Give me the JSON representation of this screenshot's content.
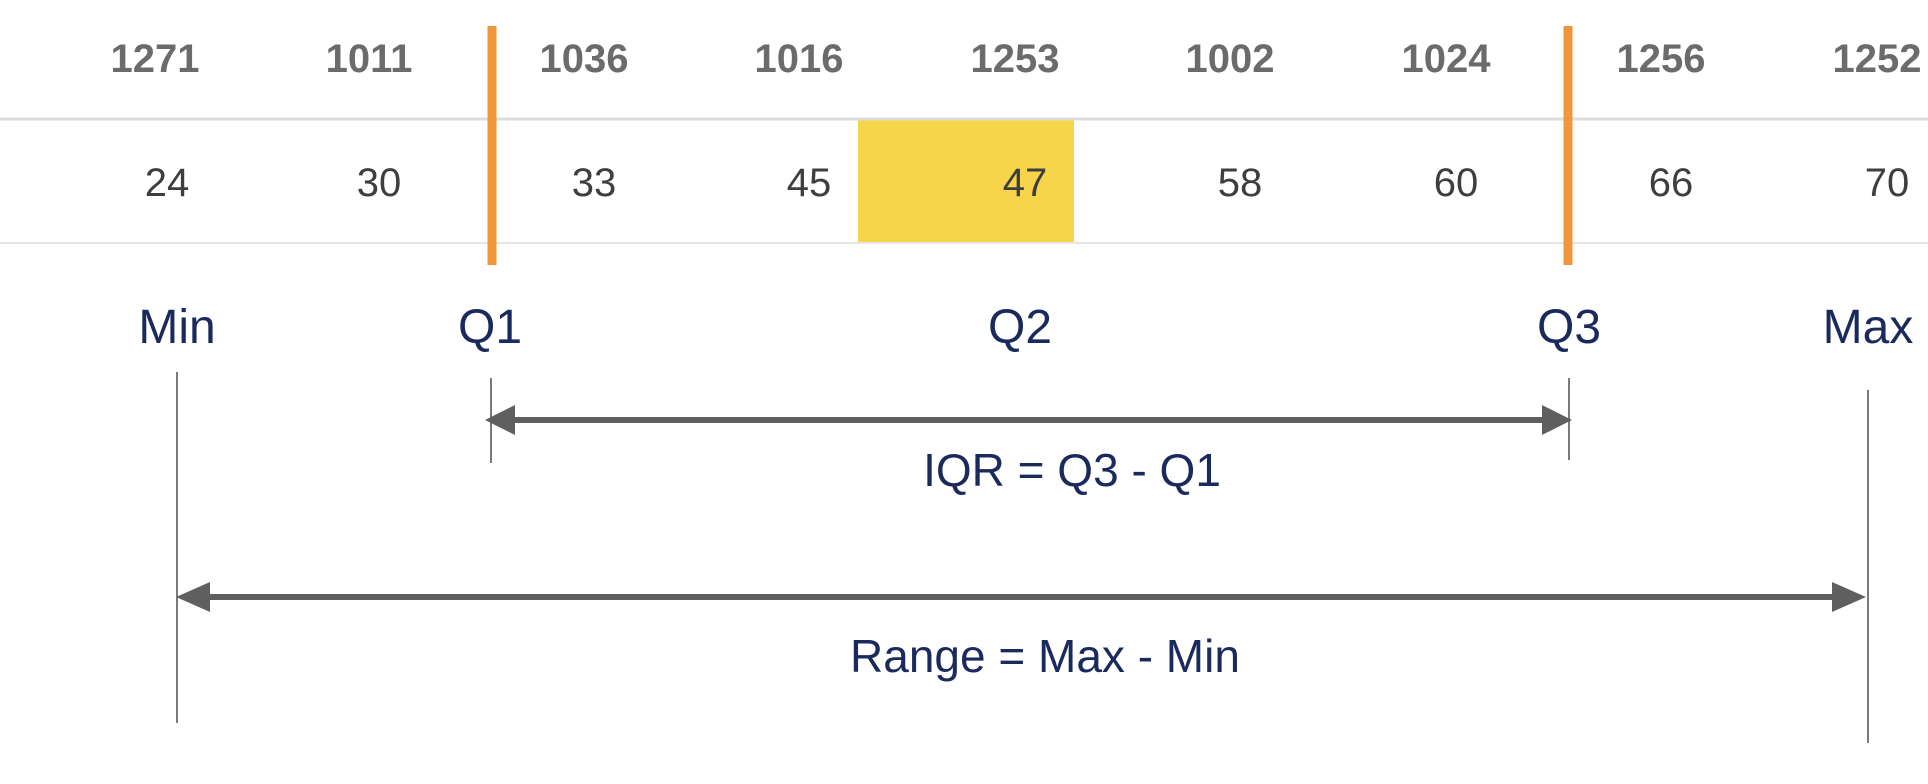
{
  "table": {
    "ids": [
      "1271",
      "1011",
      "1036",
      "1016",
      "1253",
      "1002",
      "1024",
      "1256",
      "1252"
    ],
    "values": [
      "24",
      "30",
      "33",
      "45",
      "47",
      "58",
      "60",
      "66",
      "70"
    ],
    "highlight_index": 4
  },
  "labels": {
    "min": "Min",
    "q1": "Q1",
    "q2": "Q2",
    "q3": "Q3",
    "max": "Max"
  },
  "formulas": {
    "iqr": "IQR = Q3 - Q1",
    "range": "Range = Max - Min"
  },
  "colors": {
    "quartile_line": "#f0973a",
    "median_highlight": "#f7d54a",
    "label_text": "#1a2a5c",
    "arrow": "#5f5f5f"
  }
}
